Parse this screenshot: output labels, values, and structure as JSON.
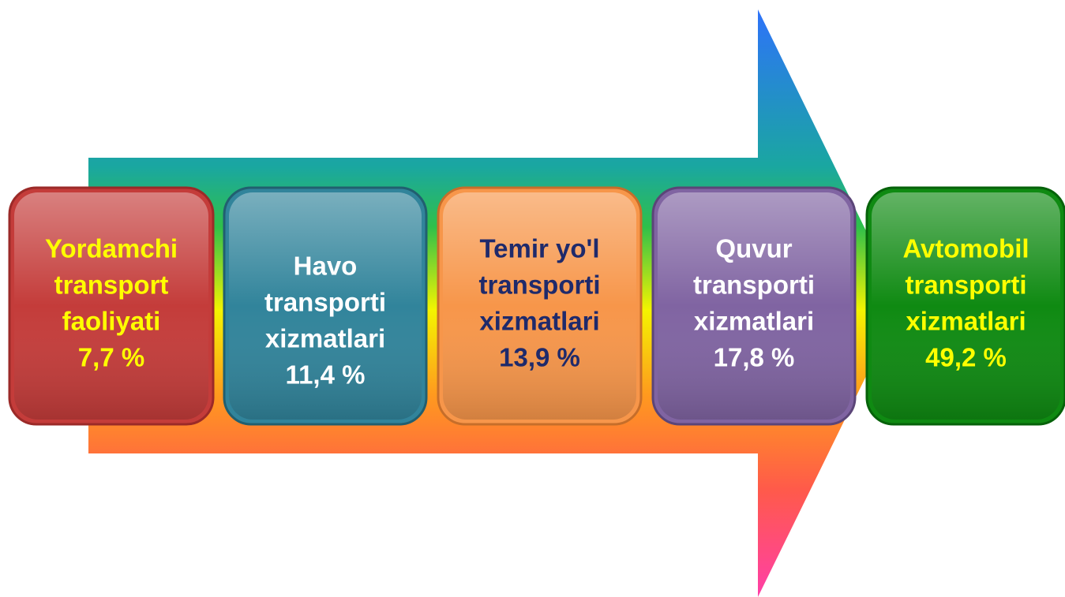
{
  "boxes": [
    {
      "lines": [
        "Yordamchi",
        "transport",
        "faoliyati",
        "7,7 %"
      ]
    },
    {
      "lines": [
        "Havo",
        "transporti",
        "xizmatlari",
        "11,4 %"
      ]
    },
    {
      "lines": [
        "Temir yo'l",
        "transporti",
        "xizmatlari",
        "13,9 %"
      ]
    },
    {
      "lines": [
        "Quvur",
        "transporti",
        "xizmatlari",
        "17,8 %"
      ]
    },
    {
      "lines": [
        "Avtomobil",
        "transporti",
        "xizmatlari",
        "49,2 %"
      ]
    }
  ]
}
